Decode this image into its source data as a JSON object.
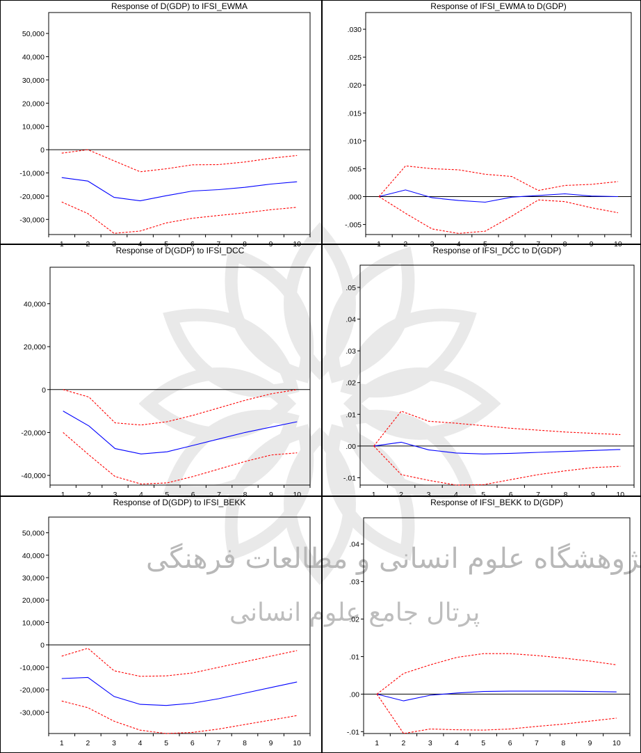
{
  "chart_data": [
    {
      "type": "line",
      "title": "Response of D(GDP) to IFSI_EWMA",
      "x": [
        1,
        2,
        3,
        4,
        5,
        6,
        7,
        8,
        9,
        10
      ],
      "ylim": [
        -36500,
        59000
      ],
      "yticks": [
        50000,
        40000,
        30000,
        20000,
        10000,
        0,
        -10000,
        -20000,
        -30000
      ],
      "ytick_labels": [
        "50,000",
        "40,000",
        "30,000",
        "20,000",
        "10,000",
        "0",
        "-10,000",
        "-20,000",
        "-30,000"
      ],
      "series": [
        {
          "role": "response",
          "color": "#0000ff",
          "style": "solid",
          "values": [
            -12000,
            -13500,
            -20500,
            -22000,
            -19800,
            -17800,
            -17200,
            -16200,
            -14800,
            -13800
          ]
        },
        {
          "role": "upper",
          "color": "#ff0000",
          "style": "dashed",
          "values": [
            -1500,
            0,
            -4800,
            -9500,
            -8200,
            -6500,
            -6400,
            -5300,
            -3700,
            -2500
          ]
        },
        {
          "role": "lower",
          "color": "#ff0000",
          "style": "dashed",
          "values": [
            -22500,
            -27500,
            -36000,
            -35000,
            -31500,
            -29500,
            -28300,
            -27200,
            -25800,
            -24800
          ]
        }
      ]
    },
    {
      "type": "line",
      "title": "Response of IFSI_EWMA to D(GDP)",
      "x": [
        1,
        2,
        3,
        4,
        5,
        6,
        7,
        8,
        9,
        10
      ],
      "ylim": [
        -0.0068,
        0.033
      ],
      "yticks": [
        0.03,
        0.025,
        0.02,
        0.015,
        0.01,
        0.005,
        0.0,
        -0.005
      ],
      "ytick_labels": [
        ".030",
        ".025",
        ".020",
        ".015",
        ".010",
        ".005",
        ".000",
        "-.005"
      ],
      "series": [
        {
          "role": "response",
          "color": "#0000ff",
          "style": "solid",
          "values": [
            0,
            0.0012,
            -0.0002,
            -0.0007,
            -0.001,
            -0.0001,
            0.0002,
            0.0005,
            0.0001,
            0
          ]
        },
        {
          "role": "upper",
          "color": "#ff0000",
          "style": "dashed",
          "values": [
            0,
            0.0055,
            0.005,
            0.0048,
            0.004,
            0.0036,
            0.0011,
            0.002,
            0.0022,
            0.0027
          ]
        },
        {
          "role": "lower",
          "color": "#ff0000",
          "style": "dashed",
          "values": [
            0,
            -0.003,
            -0.0058,
            -0.0066,
            -0.0062,
            -0.0035,
            -0.0006,
            -0.0009,
            -0.002,
            -0.0029
          ]
        }
      ]
    },
    {
      "type": "line",
      "title": "Response of D(GDP) to IFSI_DCC",
      "x": [
        1,
        2,
        3,
        4,
        5,
        6,
        7,
        8,
        9,
        10
      ],
      "ylim": [
        -44500,
        57000
      ],
      "yticks": [
        40000,
        20000,
        0,
        -20000,
        -40000
      ],
      "ytick_labels": [
        "40,000",
        "20,000",
        "0",
        "-20,000",
        "-40,000"
      ],
      "series": [
        {
          "role": "response",
          "color": "#0000ff",
          "style": "solid",
          "values": [
            -10000,
            -17000,
            -27500,
            -30000,
            -29000,
            -26000,
            -23000,
            -20000,
            -17500,
            -15000
          ]
        },
        {
          "role": "upper",
          "color": "#ff0000",
          "style": "dashed",
          "values": [
            0,
            -3500,
            -15500,
            -16500,
            -15000,
            -12000,
            -8500,
            -5000,
            -2000,
            0
          ]
        },
        {
          "role": "lower",
          "color": "#ff0000",
          "style": "dashed",
          "values": [
            -20000,
            -30500,
            -40500,
            -44000,
            -43500,
            -40500,
            -37000,
            -33500,
            -30500,
            -29500
          ]
        }
      ]
    },
    {
      "type": "line",
      "title": "Response of IFSI_DCC to D(GDP)",
      "x": [
        1,
        2,
        3,
        4,
        5,
        6,
        7,
        8,
        9,
        10
      ],
      "ylim": [
        -0.0123,
        0.057
      ],
      "yticks": [
        0.05,
        0.04,
        0.03,
        0.02,
        0.01,
        0.0,
        -0.01
      ],
      "ytick_labels": [
        ".05",
        ".04",
        ".03",
        ".02",
        ".01",
        ".00",
        "-.01"
      ],
      "series": [
        {
          "role": "response",
          "color": "#0000ff",
          "style": "solid",
          "values": [
            0,
            0.0012,
            -0.0012,
            -0.0022,
            -0.0025,
            -0.0023,
            -0.002,
            -0.0017,
            -0.0014,
            -0.0011
          ]
        },
        {
          "role": "upper",
          "color": "#ff0000",
          "style": "dashed",
          "values": [
            0,
            0.011,
            0.0078,
            0.0072,
            0.0064,
            0.0056,
            0.005,
            0.0044,
            0.004,
            0.0036
          ]
        },
        {
          "role": "lower",
          "color": "#ff0000",
          "style": "dashed",
          "values": [
            0,
            -0.009,
            -0.0108,
            -0.0123,
            -0.0122,
            -0.0106,
            -0.009,
            -0.0078,
            -0.0068,
            -0.0064
          ]
        }
      ]
    },
    {
      "type": "line",
      "title": "Response of D(GDP) to IFSI_BEKK",
      "x": [
        1,
        2,
        3,
        4,
        5,
        6,
        7,
        8,
        9,
        10
      ],
      "ylim": [
        -39500,
        57000
      ],
      "yticks": [
        50000,
        40000,
        30000,
        20000,
        10000,
        0,
        -10000,
        -20000,
        -30000
      ],
      "ytick_labels": [
        "50,000",
        "40,000",
        "30,000",
        "20,000",
        "10,000",
        "0",
        "-10,000",
        "-20,000",
        "-30,000"
      ],
      "series": [
        {
          "role": "response",
          "color": "#0000ff",
          "style": "solid",
          "values": [
            -15000,
            -14500,
            -23000,
            -26500,
            -27000,
            -26000,
            -24000,
            -21500,
            -19000,
            -16500
          ]
        },
        {
          "role": "upper",
          "color": "#ff0000",
          "style": "dashed",
          "values": [
            -5000,
            -1500,
            -11500,
            -14000,
            -13800,
            -12500,
            -10000,
            -7500,
            -5000,
            -2500
          ]
        },
        {
          "role": "lower",
          "color": "#ff0000",
          "style": "dashed",
          "values": [
            -25000,
            -28000,
            -34000,
            -38000,
            -39500,
            -39000,
            -37500,
            -35500,
            -33500,
            -31500
          ]
        }
      ]
    },
    {
      "type": "line",
      "title": "Response of IFSI_BEKK to D(GDP)",
      "x": [
        1,
        2,
        3,
        4,
        5,
        6,
        7,
        8,
        9,
        10
      ],
      "ylim": [
        -0.0105,
        0.047
      ],
      "yticks": [
        0.04,
        0.03,
        0.02,
        0.01,
        0.0,
        -0.01
      ],
      "ytick_labels": [
        ".04",
        ".03",
        ".02",
        ".01",
        ".00",
        "-.01"
      ],
      "series": [
        {
          "role": "response",
          "color": "#0000ff",
          "style": "solid",
          "values": [
            0,
            -0.0018,
            -0.0003,
            0.0003,
            0.0007,
            0.0008,
            0.0008,
            0.0008,
            0.0007,
            0.0006
          ]
        },
        {
          "role": "upper",
          "color": "#ff0000",
          "style": "dashed",
          "values": [
            0,
            0.0055,
            0.0078,
            0.0098,
            0.0108,
            0.0108,
            0.0103,
            0.0096,
            0.0088,
            0.0078
          ]
        },
        {
          "role": "lower",
          "color": "#ff0000",
          "style": "dashed",
          "values": [
            0,
            -0.0105,
            -0.0093,
            -0.0095,
            -0.0096,
            -0.0093,
            -0.0086,
            -0.008,
            -0.0072,
            -0.0064
          ]
        }
      ]
    }
  ]
}
